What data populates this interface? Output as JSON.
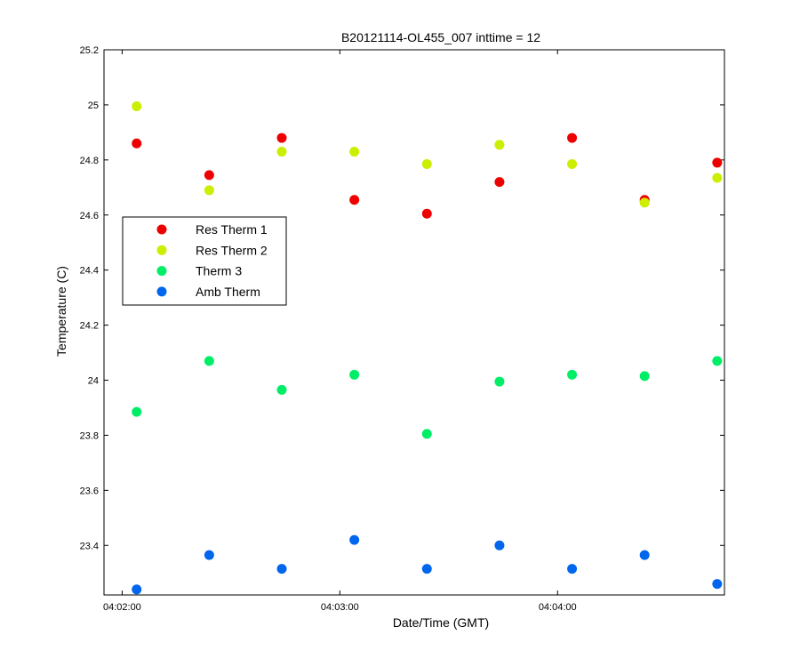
{
  "chart_data": {
    "type": "scatter",
    "title": "B20121114-OL455_007 inttime = 12",
    "xlabel": "Date/Time (GMT)",
    "ylabel": "Temperature (C)",
    "x_ticks": [
      {
        "label": "04:02:00",
        "value": 0
      },
      {
        "label": "04:03:00",
        "value": 60
      },
      {
        "label": "04:04:00",
        "value": 120
      }
    ],
    "xlim_seconds_after_04_02_00": [
      -5,
      166
    ],
    "ylim": [
      23.22,
      25.2
    ],
    "y_ticks": [
      {
        "label": "23.4",
        "value": 23.4
      },
      {
        "label": "23.6",
        "value": 23.6
      },
      {
        "label": "23.8",
        "value": 23.8
      },
      {
        "label": "24",
        "value": 24.0
      },
      {
        "label": "24.2",
        "value": 24.2
      },
      {
        "label": "24.4",
        "value": 24.4
      },
      {
        "label": "24.6",
        "value": 24.6
      },
      {
        "label": "24.8",
        "value": 24.8
      },
      {
        "label": "25",
        "value": 25.0
      },
      {
        "label": "25.2",
        "value": 25.2
      }
    ],
    "x_seconds_after_04_02_00": [
      4,
      24,
      44,
      64,
      84,
      104,
      124,
      144,
      164
    ],
    "legend_position": "left-middle",
    "series": [
      {
        "name": "Res Therm 1",
        "color": "#ee0000",
        "values": [
          24.86,
          24.745,
          24.88,
          24.655,
          24.605,
          24.72,
          24.88,
          24.655,
          24.79
        ]
      },
      {
        "name": "Res Therm 2",
        "color": "#ccee00",
        "values": [
          24.995,
          24.69,
          24.83,
          24.83,
          24.785,
          24.855,
          24.785,
          24.645,
          24.735
        ]
      },
      {
        "name": "Therm 3",
        "color": "#00ee66",
        "values": [
          23.885,
          24.07,
          23.965,
          24.02,
          23.805,
          23.995,
          24.02,
          24.015,
          24.07
        ]
      },
      {
        "name": "Amb Therm",
        "color": "#0066ee",
        "values": [
          23.24,
          23.365,
          23.315,
          23.42,
          23.315,
          23.4,
          23.315,
          23.365,
          23.26
        ]
      }
    ]
  }
}
